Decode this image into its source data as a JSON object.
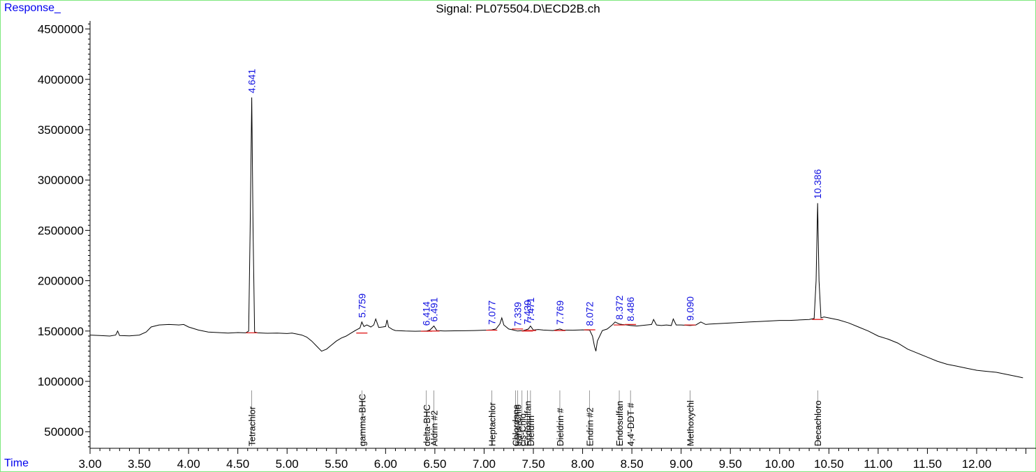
{
  "chart_data": {
    "type": "line",
    "title": "Signal: PL075504.D\\ECD2B.ch",
    "ylabel": "Response_",
    "xlabel": "Time",
    "xlim": [
      3.0,
      12.5
    ],
    "ylim": [
      330000,
      4620000
    ],
    "x_ticks": [
      "3.00",
      "3.50",
      "4.00",
      "4.50",
      "5.00",
      "5.50",
      "6.00",
      "6.50",
      "7.00",
      "7.50",
      "8.00",
      "8.50",
      "9.00",
      "9.50",
      "10.00",
      "10.50",
      "11.00",
      "11.50",
      "12.00"
    ],
    "y_ticks": [
      "500000",
      "1000000",
      "1500000",
      "2000000",
      "2500000",
      "3000000",
      "3500000",
      "4000000",
      "4500000"
    ],
    "series": [
      {
        "x": [
          3.0,
          3.1,
          3.2,
          3.26,
          3.28,
          3.3,
          3.4,
          3.5,
          3.57,
          3.62,
          3.7,
          3.8,
          3.9,
          3.95,
          4.0,
          4.1,
          4.2,
          4.3,
          4.4,
          4.5,
          4.58,
          4.61,
          4.625,
          4.641,
          4.655,
          4.67,
          4.7,
          4.8,
          4.9,
          5.0,
          5.05,
          5.1,
          5.15,
          5.2,
          5.25,
          5.3,
          5.35,
          5.4,
          5.45,
          5.5,
          5.55,
          5.6,
          5.65,
          5.7,
          5.74,
          5.759,
          5.78,
          5.81,
          5.85,
          5.88,
          5.9,
          5.93,
          5.97,
          6.0,
          6.015,
          6.03,
          6.07,
          6.1,
          6.2,
          6.3,
          6.414,
          6.45,
          6.491,
          6.52,
          6.6,
          6.7,
          6.8,
          6.9,
          7.0,
          7.077,
          7.12,
          7.16,
          7.18,
          7.2,
          7.25,
          7.3,
          7.339,
          7.4,
          7.45,
          7.471,
          7.5,
          7.55,
          7.6,
          7.7,
          7.769,
          7.8,
          7.9,
          8.0,
          8.072,
          8.1,
          8.12,
          8.135,
          8.15,
          8.2,
          8.25,
          8.3,
          8.33,
          8.372,
          8.4,
          8.45,
          8.486,
          8.55,
          8.6,
          8.65,
          8.7,
          8.72,
          8.75,
          8.8,
          8.85,
          8.9,
          8.92,
          8.95,
          9.0,
          9.09,
          9.15,
          9.2,
          9.25,
          9.3,
          9.4,
          9.5,
          9.6,
          9.7,
          9.8,
          9.9,
          10.0,
          10.1,
          10.2,
          10.3,
          10.35,
          10.37,
          10.386,
          10.4,
          10.42,
          10.45,
          10.5,
          10.6,
          10.7,
          10.8,
          10.9,
          11.0,
          11.1,
          11.2,
          11.3,
          11.4,
          11.5,
          11.6,
          11.7,
          11.8,
          11.9,
          12.0,
          12.1,
          12.2,
          12.3,
          12.4,
          12.47
        ],
        "y": [
          1460000,
          1455000,
          1450000,
          1460000,
          1500000,
          1455000,
          1452000,
          1460000,
          1490000,
          1540000,
          1560000,
          1565000,
          1560000,
          1565000,
          1540000,
          1510000,
          1490000,
          1485000,
          1480000,
          1485000,
          1482000,
          1500000,
          2500000,
          3820000,
          2500000,
          1490000,
          1482000,
          1478000,
          1480000,
          1475000,
          1480000,
          1470000,
          1460000,
          1440000,
          1400000,
          1350000,
          1300000,
          1320000,
          1360000,
          1400000,
          1430000,
          1450000,
          1480000,
          1510000,
          1530000,
          1590000,
          1545000,
          1560000,
          1540000,
          1560000,
          1620000,
          1535000,
          1540000,
          1545000,
          1610000,
          1540000,
          1515000,
          1505000,
          1500000,
          1498000,
          1500000,
          1510000,
          1550000,
          1505000,
          1500000,
          1502000,
          1503000,
          1505000,
          1508000,
          1512000,
          1520000,
          1570000,
          1630000,
          1560000,
          1520000,
          1510000,
          1500000,
          1505000,
          1520000,
          1550000,
          1510000,
          1515000,
          1510000,
          1505000,
          1520000,
          1510000,
          1508000,
          1512000,
          1508000,
          1450000,
          1350000,
          1300000,
          1400000,
          1505000,
          1520000,
          1560000,
          1590000,
          1570000,
          1565000,
          1560000,
          1555000,
          1550000,
          1555000,
          1560000,
          1565000,
          1615000,
          1560000,
          1555000,
          1560000,
          1555000,
          1620000,
          1560000,
          1560000,
          1555000,
          1560000,
          1590000,
          1565000,
          1570000,
          1575000,
          1580000,
          1585000,
          1590000,
          1595000,
          1600000,
          1605000,
          1605000,
          1610000,
          1615000,
          1625000,
          2000000,
          2770000,
          2000000,
          1630000,
          1640000,
          1630000,
          1610000,
          1580000,
          1540000,
          1500000,
          1450000,
          1420000,
          1380000,
          1320000,
          1280000,
          1240000,
          1200000,
          1170000,
          1150000,
          1130000,
          1110000,
          1100000,
          1090000,
          1070000,
          1050000,
          1035000
        ]
      }
    ],
    "peak_labels": [
      {
        "rt": "4.641",
        "x": 4.641,
        "y": 3820000
      },
      {
        "rt": "5.759",
        "x": 5.759,
        "y": 1590000
      },
      {
        "rt": "6.414",
        "x": 6.414,
        "y": 1510000
      },
      {
        "rt": "6.491",
        "x": 6.491,
        "y": 1550000
      },
      {
        "rt": "7.077",
        "x": 7.077,
        "y": 1520000
      },
      {
        "rt": "7.339",
        "x": 7.339,
        "y": 1505000
      },
      {
        "rt": "7.439",
        "x": 7.439,
        "y": 1525000
      },
      {
        "rt": "7.471",
        "x": 7.471,
        "y": 1550000
      },
      {
        "rt": "7.769",
        "x": 7.769,
        "y": 1520000
      },
      {
        "rt": "8.072",
        "x": 8.072,
        "y": 1508000
      },
      {
        "rt": "8.372",
        "x": 8.372,
        "y": 1570000
      },
      {
        "rt": "8.486",
        "x": 8.486,
        "y": 1555000
      },
      {
        "rt": "9.090",
        "x": 9.09,
        "y": 1560000
      },
      {
        "rt": "10.386",
        "x": 10.386,
        "y": 2770000
      }
    ],
    "compound_labels": [
      {
        "name": "Tetrachlor",
        "x": 4.641
      },
      {
        "name": "gamma-BHC",
        "x": 5.759
      },
      {
        "name": "delta-BHC",
        "x": 6.414
      },
      {
        "name": "Aldrin #2",
        "x": 6.491
      },
      {
        "name": "Heptachlor",
        "x": 7.077
      },
      {
        "name": "Chlordane",
        "x": 7.32
      },
      {
        "name": "trans-Chlo",
        "x": 7.339
      },
      {
        "name": "cis-Chlo",
        "x": 7.385
      },
      {
        "name": "Endosulfan",
        "x": 7.439
      },
      {
        "name": "Dieldrin",
        "x": 7.471
      },
      {
        "name": "Dieldrin #",
        "x": 7.769
      },
      {
        "name": "Endrin #2",
        "x": 8.072
      },
      {
        "name": "Endosulfan",
        "x": 8.372
      },
      {
        "name": "4,4'-DDT #",
        "x": 8.486
      },
      {
        "name": "Methoxychl",
        "x": 9.09
      },
      {
        "name": "Decachloro",
        "x": 10.386
      }
    ]
  }
}
